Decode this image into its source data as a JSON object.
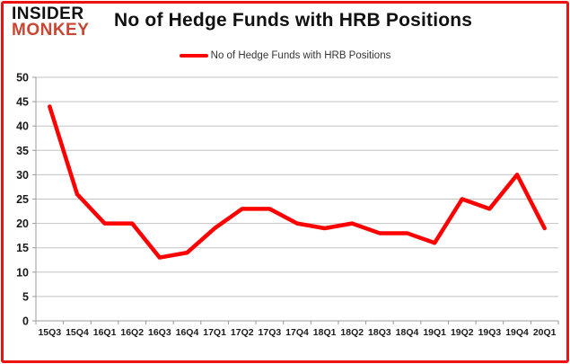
{
  "header": {
    "logo_line1": "INSIDER",
    "logo_line2": "MONKEY",
    "title": "No of Hedge Funds with HRB Positions"
  },
  "legend": {
    "label": "No of Hedge Funds with HRB Positions"
  },
  "chart_data": {
    "type": "line",
    "title": "No of Hedge Funds with HRB Positions",
    "categories": [
      "15Q3",
      "15Q4",
      "16Q1",
      "16Q2",
      "16Q3",
      "16Q4",
      "17Q1",
      "17Q2",
      "17Q3",
      "17Q4",
      "18Q1",
      "18Q2",
      "18Q3",
      "18Q4",
      "19Q1",
      "19Q2",
      "19Q3",
      "19Q4",
      "20Q1"
    ],
    "series": [
      {
        "name": "No of Hedge Funds with HRB Positions",
        "values": [
          44,
          26,
          20,
          20,
          13,
          14,
          19,
          23,
          23,
          20,
          19,
          20,
          18,
          18,
          16,
          25,
          23,
          30,
          19
        ]
      }
    ],
    "ylim": [
      0,
      50
    ],
    "ytick_step": 5,
    "grid": true,
    "legend_position": "top-center",
    "xlabel": "",
    "ylabel": ""
  },
  "colors": {
    "series_line": "#ff0000",
    "page_border": "#ee1111",
    "gridline": "#c3c3c3",
    "axis_line": "#9b9b9b",
    "tick_label": "#1a1a1a",
    "logo_monkey": "#c74634"
  }
}
